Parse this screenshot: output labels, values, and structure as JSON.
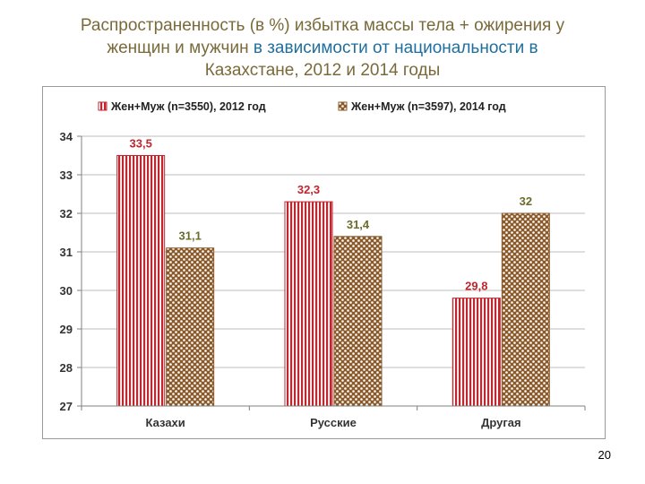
{
  "slide": {
    "title_line1": "Распространенность (в %) избытка массы тела + ожирения  у",
    "title_line2_a": "женщин и мужчин ",
    "title_line2_b": "в зависимости от национальности в",
    "title_line3": "Казахстане, 2012 и 2014 годы",
    "page_number": "20"
  },
  "chart_data": {
    "type": "bar",
    "title": "",
    "xlabel": "",
    "ylabel": "",
    "categories": [
      "Казахи",
      "Русские",
      "Другая"
    ],
    "ylim": [
      27,
      34
    ],
    "yticks": [
      27,
      28,
      29,
      30,
      31,
      32,
      33,
      34
    ],
    "grid": true,
    "legend_position": "top",
    "series": [
      {
        "name": "Жен+Муж (n=3550), 2012 год",
        "values": [
          33.5,
          32.3,
          29.8
        ],
        "labels": [
          "33,5",
          "32,3",
          "29,8"
        ],
        "color": "#c0262e",
        "pattern": "vertical-stripes"
      },
      {
        "name": "Жен+Муж (n=3597), 2014 год",
        "values": [
          31.1,
          31.4,
          32
        ],
        "labels": [
          "31,1",
          "31,4",
          "32"
        ],
        "color": "#8b5a2b",
        "pattern": "checker"
      }
    ],
    "label_colors": [
      "#c0262e",
      "#6b6b2a"
    ]
  }
}
